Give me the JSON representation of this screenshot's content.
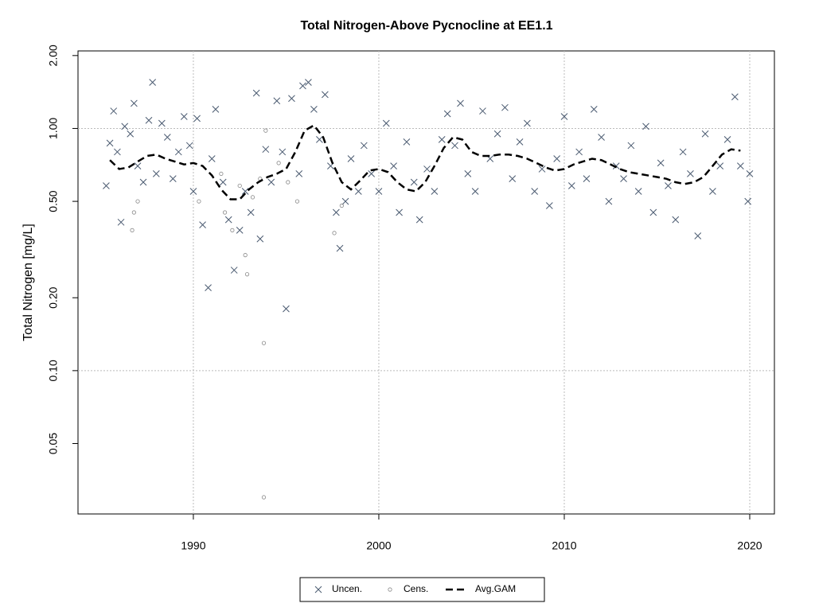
{
  "chart_data": {
    "type": "scatter",
    "title": "Total Nitrogen-Above Pycnocline at EE1.1",
    "y_label": "Total Nitrogen [mg/L]",
    "y_log": true,
    "xlim": [
      1983.78,
      2021.33
    ],
    "ylim": [
      0.0256,
      2.09
    ],
    "xticks": [
      1990,
      2000,
      2010,
      2020
    ],
    "yticks": [
      0.05,
      {
        "value": 0.1,
        "label": "0.10"
      },
      {
        "value": 0.2,
        "label": "0.20"
      },
      {
        "value": 0.5,
        "label": "0.50"
      },
      {
        "value": 1,
        "label": "1.00"
      },
      {
        "value": 2,
        "label": "2.00"
      }
    ],
    "grid_x": true,
    "grid_y": [
      0.1,
      1
    ],
    "legend": "bottom",
    "series": [
      {
        "name": "Uncen.",
        "color": "#4a5a70",
        "marker": "x",
        "x": [
          1985.3,
          1985.5,
          1985.7,
          1985.9,
          1986.1,
          1986.3,
          1986.6,
          1986.8,
          1987.0,
          1987.3,
          1987.6,
          1987.8,
          1988.0,
          1988.3,
          1988.6,
          1988.9,
          1989.2,
          1989.5,
          1989.8,
          1990.0,
          1990.2,
          1990.5,
          1990.8,
          1991.0,
          1991.2,
          1991.6,
          1991.9,
          1992.2,
          1992.5,
          1992.8,
          1993.1,
          1993.4,
          1993.6,
          1993.9,
          1994.2,
          1994.5,
          1994.8,
          1995.0,
          1995.3,
          1995.7,
          1995.9,
          1996.2,
          1996.5,
          1996.8,
          1997.1,
          1997.4,
          1997.7,
          1997.9,
          1998.2,
          1998.5,
          1998.9,
          1999.2,
          1999.6,
          2000.0,
          2000.4,
          2000.8,
          2001.1,
          2001.5,
          2001.9,
          2002.2,
          2002.6,
          2003.0,
          2003.4,
          2003.7,
          2004.1,
          2004.4,
          2004.8,
          2005.2,
          2005.6,
          2006.0,
          2006.4,
          2006.8,
          2007.2,
          2007.6,
          2008.0,
          2008.4,
          2008.8,
          2009.2,
          2009.6,
          2010.0,
          2010.4,
          2010.8,
          2011.2,
          2011.6,
          2012.0,
          2012.4,
          2012.8,
          2013.2,
          2013.6,
          2014.0,
          2014.4,
          2014.8,
          2015.2,
          2015.6,
          2016.0,
          2016.4,
          2016.8,
          2017.2,
          2017.6,
          2018.0,
          2018.4,
          2018.8,
          2019.2,
          2019.5,
          2019.9,
          2020.0
        ],
        "values": [
          0.58,
          0.87,
          1.18,
          0.8,
          0.41,
          1.02,
          0.95,
          1.27,
          0.7,
          0.6,
          1.08,
          1.55,
          0.65,
          1.05,
          0.92,
          0.62,
          0.8,
          1.12,
          0.85,
          0.55,
          1.1,
          0.4,
          0.22,
          0.75,
          1.2,
          0.6,
          0.42,
          0.26,
          0.38,
          0.55,
          0.45,
          1.4,
          0.35,
          0.82,
          0.6,
          1.3,
          0.8,
          0.18,
          1.33,
          0.65,
          1.5,
          1.55,
          1.2,
          0.9,
          1.38,
          0.7,
          0.45,
          0.32,
          0.5,
          0.75,
          0.55,
          0.85,
          0.65,
          0.55,
          1.05,
          0.7,
          0.45,
          0.88,
          0.6,
          0.42,
          0.68,
          0.55,
          0.9,
          1.15,
          0.85,
          1.27,
          0.65,
          0.55,
          1.18,
          0.75,
          0.95,
          1.22,
          0.62,
          0.88,
          1.05,
          0.55,
          0.68,
          0.48,
          0.75,
          1.12,
          0.58,
          0.8,
          0.62,
          1.2,
          0.92,
          0.5,
          0.7,
          0.62,
          0.85,
          0.55,
          1.02,
          0.45,
          0.72,
          0.58,
          0.42,
          0.8,
          0.65,
          0.36,
          0.95,
          0.55,
          0.7,
          0.9,
          1.35,
          0.7,
          0.5,
          0.65
        ]
      },
      {
        "name": "Cens.",
        "color": "#888888",
        "marker": "circle",
        "x": [
          1986.7,
          1986.8,
          1987.0,
          1990.3,
          1991.5,
          1991.7,
          1992.1,
          1992.5,
          1992.8,
          1992.9,
          1993.2,
          1993.6,
          1993.8,
          1993.8,
          1993.9,
          1994.6,
          1995.1,
          1995.6,
          1997.6,
          1998.0
        ],
        "values": [
          0.38,
          0.45,
          0.5,
          0.5,
          0.65,
          0.45,
          0.38,
          0.58,
          0.3,
          0.25,
          0.52,
          0.62,
          0.13,
          0.03,
          0.98,
          0.72,
          0.6,
          0.5,
          0.37,
          0.48
        ]
      },
      {
        "name": "Avg.GAM",
        "color": "#000000",
        "marker": "line",
        "x": [
          1985.5,
          1986.0,
          1986.5,
          1987.0,
          1987.5,
          1988.0,
          1988.5,
          1989.0,
          1989.5,
          1990.0,
          1990.5,
          1991.0,
          1991.5,
          1992.0,
          1992.5,
          1993.0,
          1993.5,
          1994.0,
          1994.5,
          1995.0,
          1995.5,
          1996.0,
          1996.5,
          1997.0,
          1997.5,
          1998.0,
          1998.5,
          1999.0,
          1999.5,
          2000.0,
          2000.5,
          2001.0,
          2001.5,
          2002.0,
          2002.5,
          2003.0,
          2003.5,
          2004.0,
          2004.5,
          2005.0,
          2005.5,
          2006.0,
          2006.5,
          2007.0,
          2007.5,
          2008.0,
          2008.5,
          2009.0,
          2009.5,
          2010.0,
          2010.5,
          2011.0,
          2011.5,
          2012.0,
          2012.5,
          2013.0,
          2013.5,
          2014.0,
          2014.5,
          2015.0,
          2015.5,
          2016.0,
          2016.5,
          2017.0,
          2017.5,
          2018.0,
          2018.5,
          2019.0,
          2019.5
        ],
        "values": [
          0.74,
          0.68,
          0.69,
          0.73,
          0.77,
          0.78,
          0.75,
          0.73,
          0.71,
          0.72,
          0.7,
          0.64,
          0.56,
          0.51,
          0.51,
          0.56,
          0.6,
          0.63,
          0.65,
          0.68,
          0.8,
          0.98,
          1.03,
          0.92,
          0.72,
          0.6,
          0.56,
          0.61,
          0.67,
          0.68,
          0.66,
          0.6,
          0.56,
          0.55,
          0.6,
          0.7,
          0.83,
          0.92,
          0.9,
          0.8,
          0.77,
          0.77,
          0.78,
          0.78,
          0.77,
          0.75,
          0.72,
          0.69,
          0.67,
          0.68,
          0.71,
          0.73,
          0.75,
          0.74,
          0.71,
          0.68,
          0.66,
          0.65,
          0.64,
          0.63,
          0.62,
          0.6,
          0.59,
          0.6,
          0.63,
          0.7,
          0.78,
          0.82,
          0.81
        ]
      }
    ]
  }
}
